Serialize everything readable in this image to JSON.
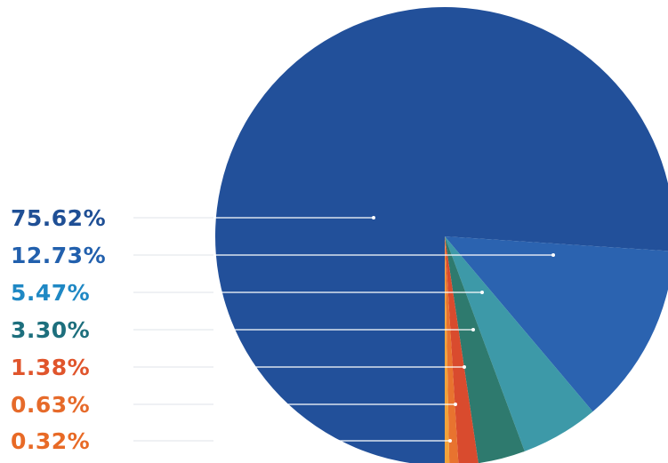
{
  "chart_data": {
    "type": "pie",
    "title": "",
    "slices": [
      {
        "label": "75.62%",
        "value": 75.62,
        "color": "#22509a",
        "label_color": "#1f4f95"
      },
      {
        "label": "12.73%",
        "value": 12.73,
        "color": "#2b63b0",
        "label_color": "#2260ad"
      },
      {
        "label": "5.47%",
        "value": 5.47,
        "color": "#3d99a8",
        "label_color": "#1f88c4"
      },
      {
        "label": "3.30%",
        "value": 3.3,
        "color": "#2e7a6e",
        "label_color": "#1d6f7d"
      },
      {
        "label": "1.38%",
        "value": 1.38,
        "color": "#d94b2e",
        "label_color": "#e0552c"
      },
      {
        "label": "0.63%",
        "value": 0.63,
        "color": "#e8732f",
        "label_color": "#e66a2a"
      },
      {
        "label": "0.32%",
        "value": 0.32,
        "color": "#f2a23a",
        "label_color": "#e86a26"
      }
    ],
    "start": "6 o'clock, counter-clockwise for small slices",
    "legend": "none",
    "labels_position": "left, with leader lines"
  }
}
